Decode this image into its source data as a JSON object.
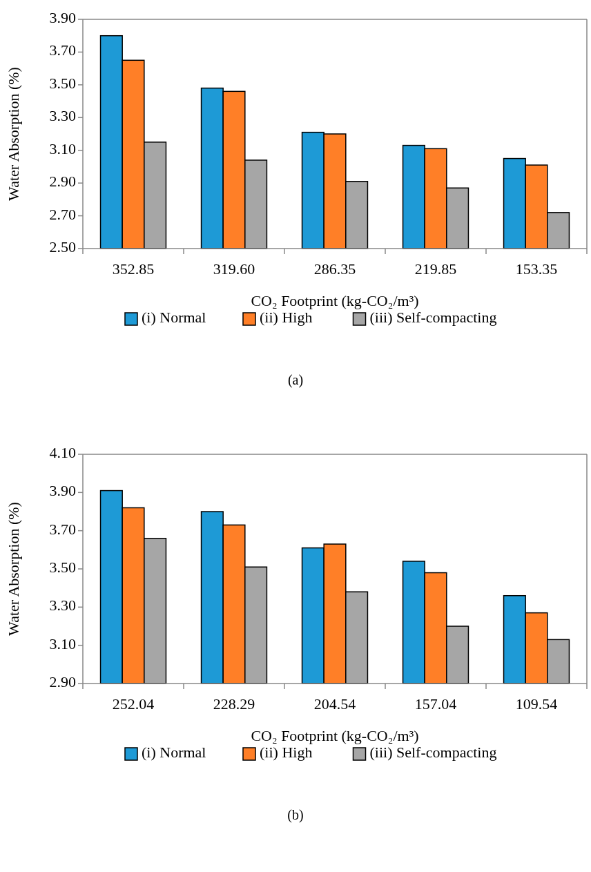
{
  "chart_data": [
    {
      "type": "bar",
      "xlabel": "CO₂ Footprint (kg-CO₂/m³)",
      "ylabel": "Water Absorption (%)",
      "categories": [
        "352.85",
        "319.60",
        "286.35",
        "219.85",
        "153.35"
      ],
      "series": [
        {
          "name": "(i) Normal",
          "color": "#1e9ad6",
          "values": [
            3.8,
            3.48,
            3.21,
            3.13,
            3.05
          ]
        },
        {
          "name": "(ii) High",
          "color": "#ff7f27",
          "values": [
            3.65,
            3.46,
            3.2,
            3.11,
            3.01
          ]
        },
        {
          "name": "(iii) Self-compacting",
          "color": "#a6a6a6",
          "values": [
            3.15,
            3.04,
            2.91,
            2.87,
            2.72
          ]
        }
      ],
      "ylim": [
        2.5,
        3.9
      ],
      "yticks": [
        {
          "value": 2.5,
          "label": "2.50"
        },
        {
          "value": 2.7,
          "label": "2.70"
        },
        {
          "value": 2.9,
          "label": "2.90"
        },
        {
          "value": 3.1,
          "label": "3.10"
        },
        {
          "value": 3.3,
          "label": "3.30"
        },
        {
          "value": 3.5,
          "label": "3.50"
        },
        {
          "value": 3.7,
          "label": "3.70"
        },
        {
          "value": 3.9,
          "label": "3.90"
        }
      ],
      "grid": false,
      "legend": "bottom",
      "annotations": [
        "(a)"
      ]
    },
    {
      "type": "bar",
      "xlabel": "CO₂ Footprint (kg-CO₂/m³)",
      "ylabel": "Water Absorption (%)",
      "categories": [
        "252.04",
        "228.29",
        "204.54",
        "157.04",
        "109.54"
      ],
      "series": [
        {
          "name": "(i) Normal",
          "color": "#1e9ad6",
          "values": [
            3.91,
            3.8,
            3.61,
            3.54,
            3.36
          ]
        },
        {
          "name": "(ii) High",
          "color": "#ff7f27",
          "values": [
            3.82,
            3.73,
            3.63,
            3.48,
            3.27
          ]
        },
        {
          "name": "(iii) Self-compacting",
          "color": "#a6a6a6",
          "values": [
            3.66,
            3.51,
            3.38,
            3.2,
            3.13
          ]
        }
      ],
      "ylim": [
        2.9,
        4.1
      ],
      "yticks": [
        {
          "value": 2.9,
          "label": "2.90"
        },
        {
          "value": 3.1,
          "label": "3.10"
        },
        {
          "value": 3.3,
          "label": "3.30"
        },
        {
          "value": 3.5,
          "label": "3.50"
        },
        {
          "value": 3.7,
          "label": "3.70"
        },
        {
          "value": 3.9,
          "label": "3.90"
        },
        {
          "value": 4.1,
          "label": "4.10"
        }
      ],
      "grid": false,
      "legend": "bottom",
      "annotations": [
        "(b)"
      ]
    }
  ]
}
